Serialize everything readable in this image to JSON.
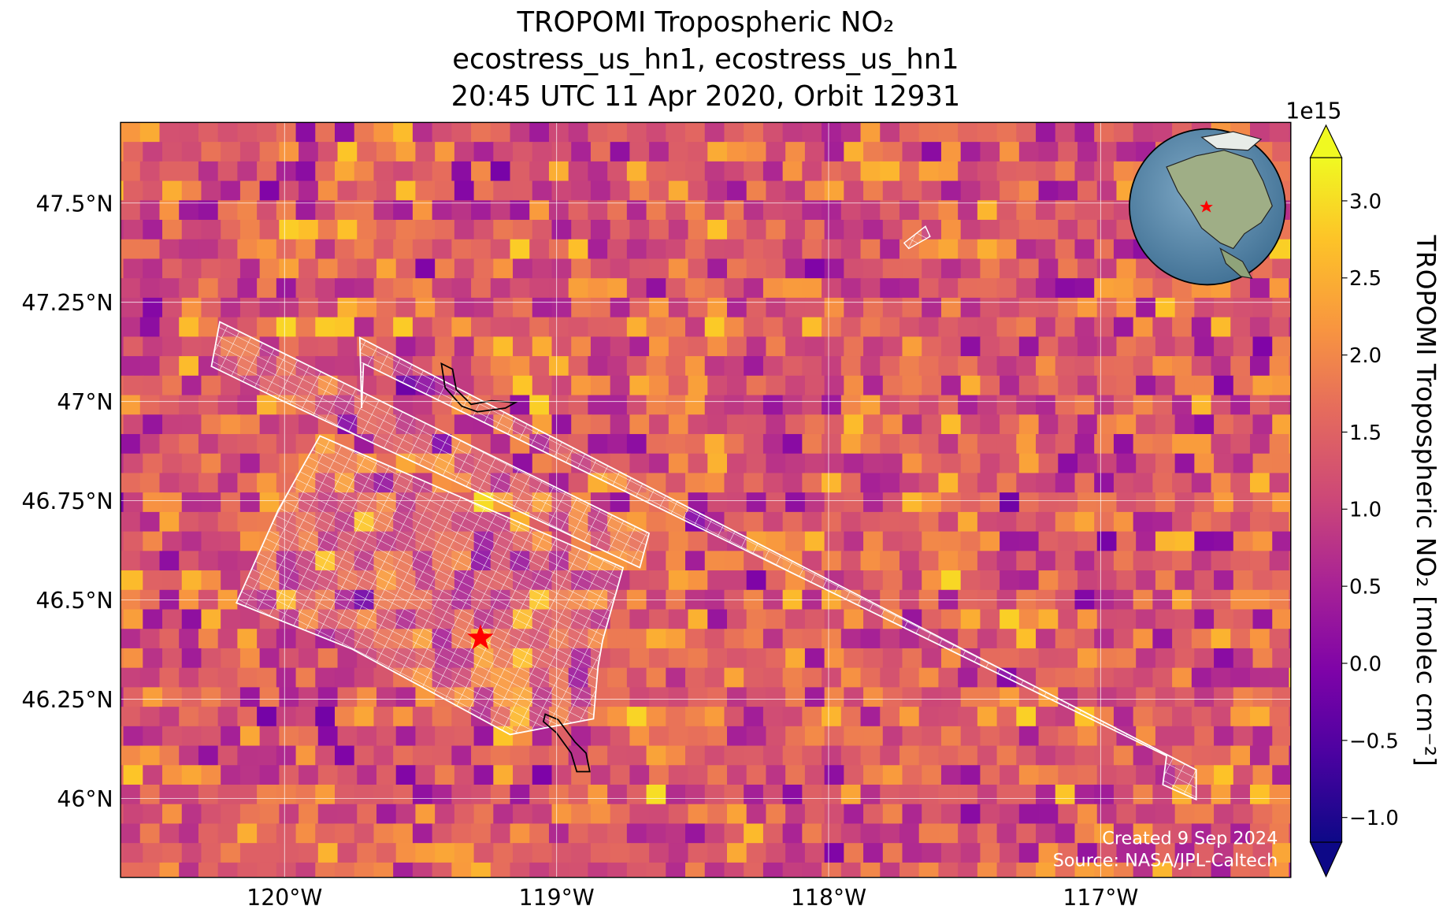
{
  "chart_data": {
    "type": "map",
    "title": [
      "TROPOMI Tropospheric NO₂",
      "ecostress_us_hn1, ecostress_us_hn1",
      "20:45 UTC 11 Apr 2020, Orbit 12931"
    ],
    "xlim": [
      -120.603,
      -116.301
    ],
    "ylim": [
      45.801,
      47.703
    ],
    "xticks": [
      {
        "value": -120,
        "label": "120°W"
      },
      {
        "value": -119,
        "label": "119°W"
      },
      {
        "value": -118,
        "label": "118°W"
      },
      {
        "value": -117,
        "label": "117°W"
      }
    ],
    "yticks": [
      {
        "value": 46,
        "label": "46°N"
      },
      {
        "value": 46.25,
        "label": "46.25°N"
      },
      {
        "value": 46.5,
        "label": "46.5°N"
      },
      {
        "value": 46.75,
        "label": "46.75°N"
      },
      {
        "value": 47,
        "label": "47°N"
      },
      {
        "value": 47.25,
        "label": "47.25°N"
      },
      {
        "value": 47.5,
        "label": "47.5°N"
      }
    ],
    "grid": true,
    "marker": {
      "lon": -119.28,
      "lat": 46.404,
      "color": "#ff0000"
    },
    "colorbar": {
      "label": "TROPOMI Tropospheric NO₂ [molec cm⁻²]",
      "offset_label": "1e15",
      "lim": [
        -1.16,
        3.28
      ],
      "ticks": [
        {
          "value": -1.0,
          "label": "−1.0"
        },
        {
          "value": -0.5,
          "label": "−0.5"
        },
        {
          "value": 0.0,
          "label": "0.0"
        },
        {
          "value": 0.5,
          "label": "0.5"
        },
        {
          "value": 1.0,
          "label": "1.0"
        },
        {
          "value": 1.5,
          "label": "1.5"
        },
        {
          "value": 2.0,
          "label": "2.0"
        },
        {
          "value": 2.5,
          "label": "2.5"
        },
        {
          "value": 3.0,
          "label": "3.0"
        }
      ]
    },
    "annotations": [
      "Created 9 Sep 2024",
      "Source: NASA/JPL-Caltech"
    ]
  }
}
